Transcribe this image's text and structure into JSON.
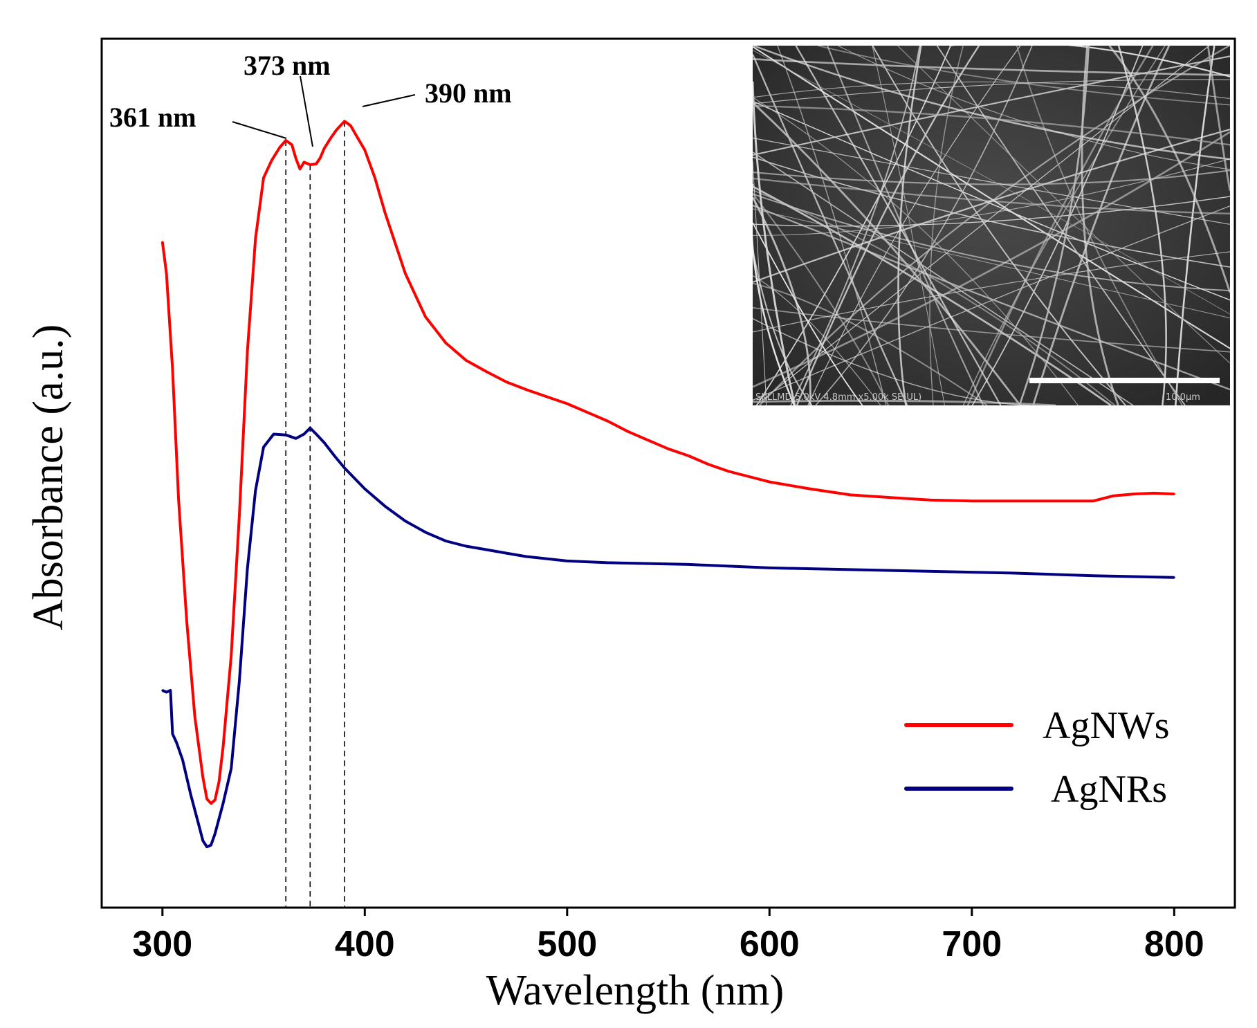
{
  "chart_data": {
    "type": "line",
    "xlabel": "Wavelength (nm)",
    "ylabel": "Absorbance (a.u.)",
    "xlim": [
      270,
      830
    ],
    "ylim": [
      0,
      1
    ],
    "xticks": [
      300,
      400,
      500,
      600,
      700,
      800
    ],
    "grid": false,
    "legend_position": "bottom-right",
    "series": [
      {
        "name": "AgNWs",
        "color": "#ff0000",
        "x": [
          300,
          302,
          305,
          308,
          312,
          316,
          320,
          322,
          324,
          326,
          328,
          330,
          334,
          338,
          342,
          346,
          350,
          354,
          358,
          361,
          364,
          366,
          368,
          370,
          373,
          376,
          378,
          380,
          383,
          386,
          390,
          393,
          396,
          400,
          405,
          410,
          420,
          430,
          440,
          450,
          460,
          470,
          480,
          490,
          500,
          510,
          520,
          530,
          540,
          550,
          560,
          570,
          580,
          590,
          600,
          620,
          640,
          660,
          680,
          700,
          720,
          740,
          760,
          770,
          780,
          790,
          800
        ],
        "y": [
          0.766,
          0.73,
          0.62,
          0.47,
          0.33,
          0.22,
          0.15,
          0.125,
          0.12,
          0.124,
          0.145,
          0.185,
          0.29,
          0.45,
          0.64,
          0.77,
          0.84,
          0.86,
          0.875,
          0.883,
          0.878,
          0.862,
          0.85,
          0.858,
          0.855,
          0.856,
          0.863,
          0.874,
          0.885,
          0.895,
          0.905,
          0.9,
          0.888,
          0.872,
          0.84,
          0.8,
          0.73,
          0.68,
          0.65,
          0.63,
          0.617,
          0.605,
          0.596,
          0.588,
          0.58,
          0.57,
          0.56,
          0.548,
          0.538,
          0.528,
          0.52,
          0.51,
          0.502,
          0.496,
          0.49,
          0.482,
          0.475,
          0.472,
          0.469,
          0.468,
          0.468,
          0.468,
          0.468,
          0.474,
          0.476,
          0.477,
          0.476
        ]
      },
      {
        "name": "AgNRs",
        "color": "#000080",
        "x": [
          300,
          302,
          304,
          305,
          307,
          310,
          314,
          318,
          320,
          322,
          324,
          326,
          330,
          334,
          338,
          342,
          346,
          350,
          355,
          361,
          366,
          370,
          373,
          376,
          380,
          385,
          390,
          400,
          410,
          420,
          430,
          440,
          450,
          460,
          470,
          480,
          500,
          520,
          540,
          560,
          580,
          600,
          640,
          680,
          720,
          760,
          780,
          800
        ],
        "y": [
          0.25,
          0.248,
          0.25,
          0.2,
          0.19,
          0.17,
          0.13,
          0.095,
          0.077,
          0.07,
          0.072,
          0.085,
          0.12,
          0.16,
          0.26,
          0.39,
          0.48,
          0.53,
          0.545,
          0.544,
          0.54,
          0.545,
          0.552,
          0.545,
          0.535,
          0.52,
          0.506,
          0.482,
          0.462,
          0.445,
          0.432,
          0.422,
          0.416,
          0.412,
          0.408,
          0.404,
          0.399,
          0.397,
          0.396,
          0.395,
          0.393,
          0.391,
          0.389,
          0.387,
          0.385,
          0.382,
          0.381,
          0.38
        ]
      }
    ],
    "reference_lines": [
      361,
      373,
      390
    ],
    "annotations": [
      {
        "text": "361 nm",
        "x": 361
      },
      {
        "text": "373 nm",
        "x": 373
      },
      {
        "text": "390 nm",
        "x": 390
      }
    ]
  },
  "inset": {
    "description_icon": "sem-micrograph-icon",
    "caption": "SKLLMD-5.0kV 4.8mm x5.00k SE(UL)",
    "scale_label": "10.0µm"
  }
}
